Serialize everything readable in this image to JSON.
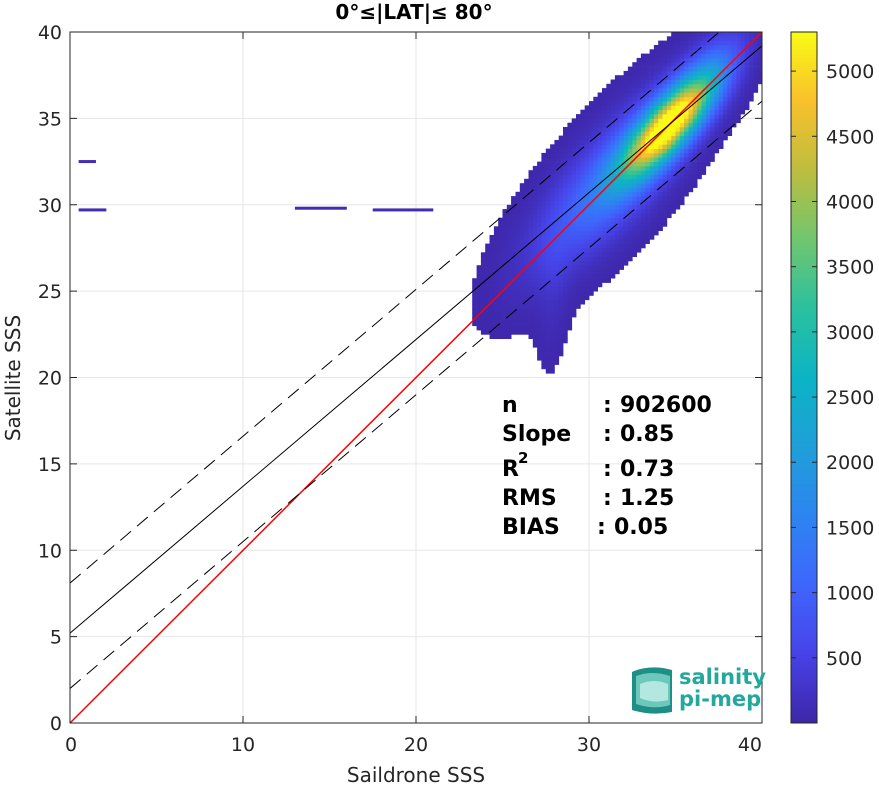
{
  "chart_data": {
    "type": "heatmap",
    "title": "0°≤|LAT|≤ 80°",
    "xlabel": "Saildrone SSS",
    "ylabel": "Satellite SSS",
    "xlim": [
      0,
      40
    ],
    "ylim": [
      0,
      40
    ],
    "xticks": [
      "0",
      "10",
      "20",
      "30",
      "40"
    ],
    "yticks": [
      "0",
      "5",
      "10",
      "15",
      "20",
      "25",
      "30",
      "35",
      "40"
    ],
    "grid": true,
    "colorbar": {
      "colormap": "parula",
      "range": [
        0,
        5300
      ],
      "ticks": [
        "500",
        "1000",
        "1500",
        "2000",
        "2500",
        "3000",
        "3500",
        "4000",
        "4500",
        "5000"
      ]
    },
    "lines": [
      {
        "name": "one-to-one",
        "color": "#ff0000",
        "style": "solid",
        "slope": 1.0,
        "intercept": 0.0
      },
      {
        "name": "regression",
        "color": "#000000",
        "style": "solid",
        "slope": 0.85,
        "intercept": 5.2
      },
      {
        "name": "regression-upper",
        "color": "#000000",
        "style": "dashed",
        "slope": 0.85,
        "intercept": 8.1
      },
      {
        "name": "regression-lower",
        "color": "#000000",
        "style": "dashed",
        "slope": 0.85,
        "intercept": 2.0
      }
    ],
    "density_clusters": [
      {
        "x": 34.5,
        "y": 34.5,
        "sx": 1.8,
        "sy": 1.2,
        "peak": 5200
      },
      {
        "x": 32.0,
        "y": 32.0,
        "sx": 2.5,
        "sy": 2.0,
        "peak": 1200
      },
      {
        "x": 29.0,
        "y": 29.5,
        "sx": 2.5,
        "sy": 2.0,
        "peak": 400
      },
      {
        "x": 36.5,
        "y": 37.0,
        "sx": 1.5,
        "sy": 1.5,
        "peak": 700
      },
      {
        "x": 27.8,
        "y": 25.0,
        "sx": 0.6,
        "sy": 2.5,
        "peak": 150
      }
    ],
    "stats": {
      "n": "902600",
      "slope": "0.85",
      "r2": "0.73",
      "rms": "1.25",
      "bias": "0.05"
    }
  },
  "labels": {
    "n": "n",
    "slope": "Slope",
    "r2_base": "R",
    "r2_sup": "2",
    "rms": "RMS",
    "bias": "BIAS",
    "colon": ": "
  },
  "logo": {
    "line1": "salinity",
    "line2": "pi-mep",
    "color": "#23a89c"
  }
}
